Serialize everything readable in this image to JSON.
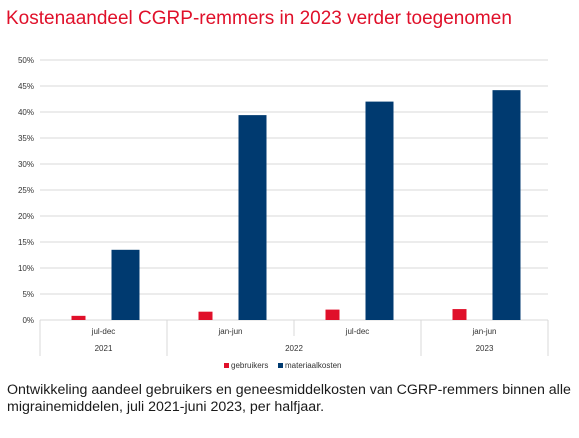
{
  "title": "Kostenaandeel CGRP-remmers in 2023 verder toegenomen",
  "caption": "Ontwikkeling aandeel gebruikers en geneesmiddelkosten van CGRP-remmers binnen alle migrainemiddelen, juli 2021-juni 2023, per halfjaar.",
  "chart_data": {
    "type": "bar",
    "categories": [
      "jul-dec",
      "jan-jun",
      "jul-dec",
      "jan-jun"
    ],
    "year_labels": [
      "2021",
      "2022",
      "2023"
    ],
    "series": [
      {
        "name": "gebruikers",
        "color": "#e0102a",
        "values": [
          0.8,
          1.6,
          2.0,
          2.1
        ]
      },
      {
        "name": "materiaalkosten",
        "color": "#003a70",
        "values": [
          13.5,
          39.4,
          42.0,
          44.2
        ]
      }
    ],
    "y_ticks": [
      "0%",
      "5%",
      "10%",
      "15%",
      "20%",
      "25%",
      "30%",
      "35%",
      "40%",
      "45%",
      "50%"
    ],
    "ylim": [
      0,
      50
    ],
    "unit": "%",
    "grid": true,
    "legend": "bottom-center"
  }
}
